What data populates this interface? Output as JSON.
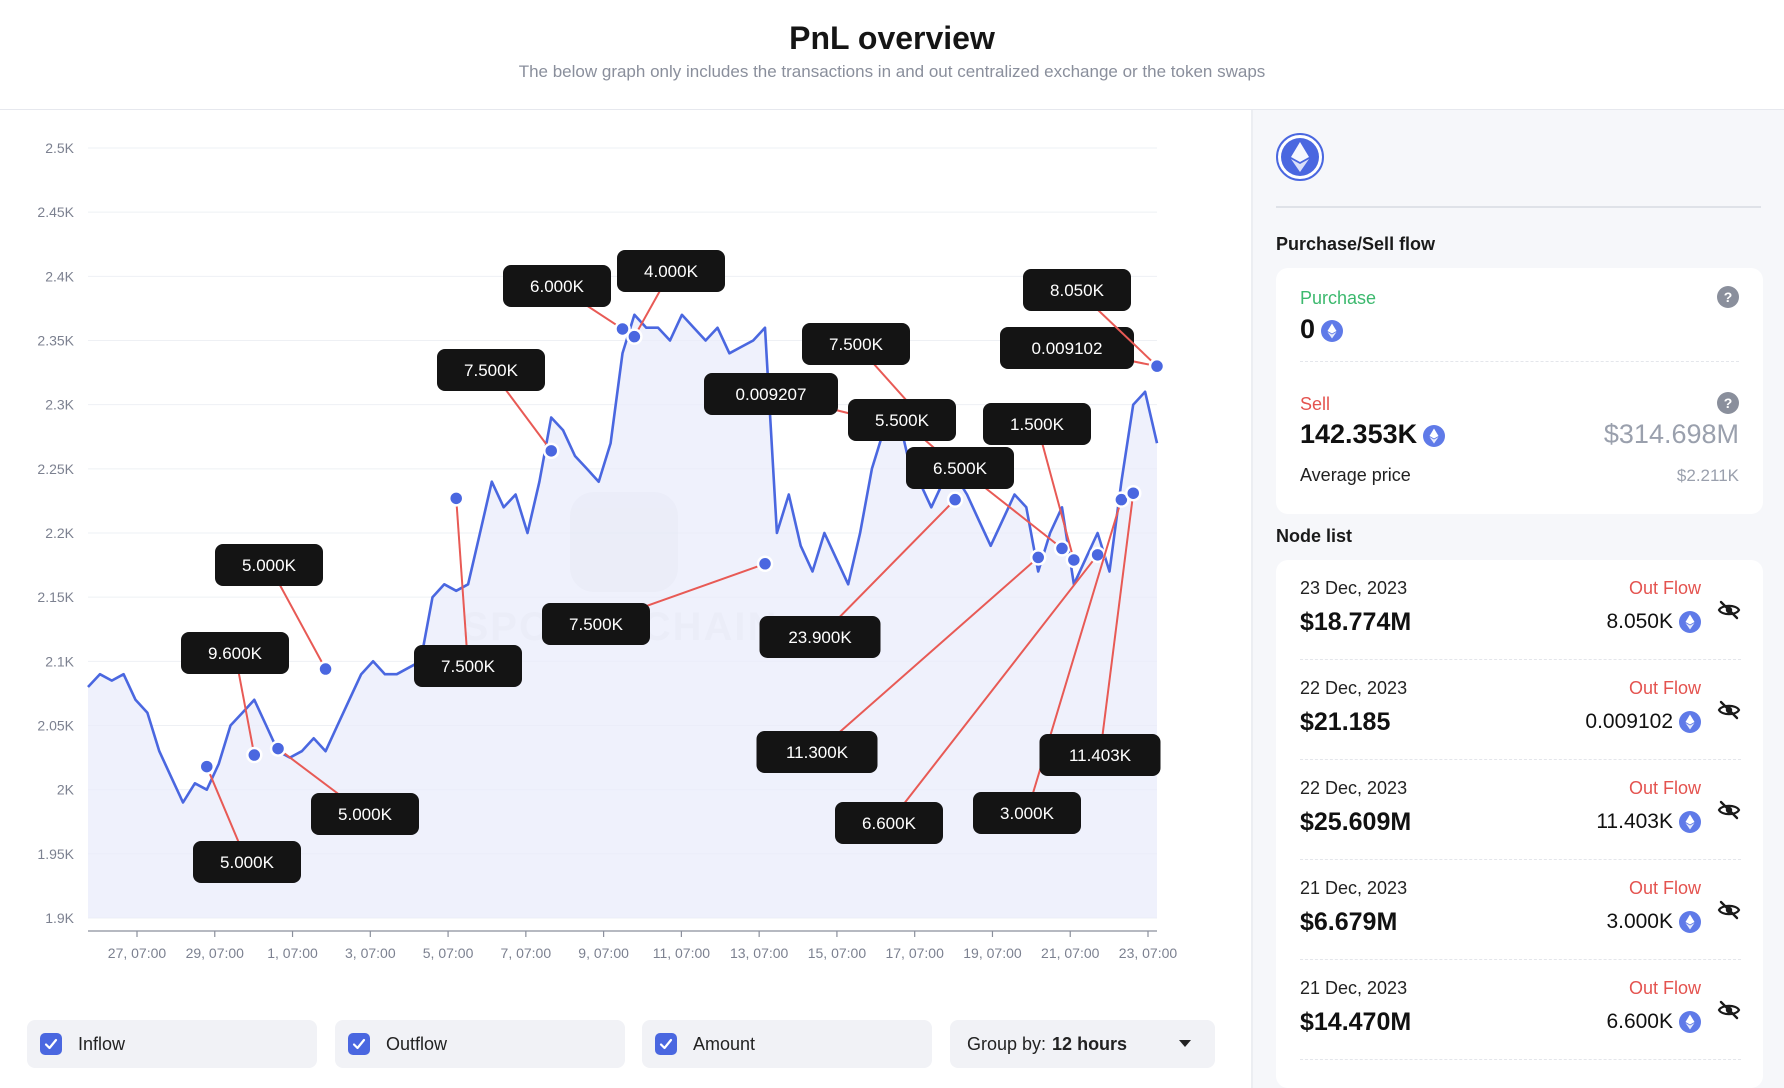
{
  "header": {
    "title": "PnL overview",
    "subtitle": "The below graph only includes the transactions in and out centralized exchange or the token swaps"
  },
  "watermark": "SPOTONCHAIN",
  "colors": {
    "line": "#4a67e0",
    "fill": "#e9ecfb",
    "connector": "#e85a55",
    "label_bg": "#141414",
    "accent": "#4a67e0",
    "out_flow": "#e4534f",
    "purchase": "#3cb96e"
  },
  "chart_data": {
    "type": "line",
    "y_ticks": [
      "1.9K",
      "1.95K",
      "2K",
      "2.05K",
      "2.1K",
      "2.15K",
      "2.2K",
      "2.25K",
      "2.3K",
      "2.35K",
      "2.4K",
      "2.45K",
      "2.5K"
    ],
    "ylim": [
      1.9,
      2.5
    ],
    "x_ticks": [
      "27, 07:00",
      "29, 07:00",
      "1, 07:00",
      "3, 07:00",
      "5, 07:00",
      "7, 07:00",
      "9, 07:00",
      "11, 07:00",
      "13, 07:00",
      "15, 07:00",
      "17, 07:00",
      "19, 07:00",
      "21, 07:00",
      "23, 07:00"
    ],
    "series": [
      {
        "values": [
          2.08,
          2.09,
          2.085,
          2.09,
          2.07,
          2.06,
          2.03,
          2.01,
          1.99,
          2.005,
          2.0,
          2.02,
          2.05,
          2.06,
          2.07,
          2.05,
          2.03,
          2.025,
          2.03,
          2.04,
          2.03,
          2.05,
          2.07,
          2.09,
          2.1,
          2.09,
          2.09,
          2.095,
          2.1,
          2.15,
          2.16,
          2.155,
          2.16,
          2.2,
          2.24,
          2.22,
          2.23,
          2.2,
          2.24,
          2.29,
          2.28,
          2.26,
          2.25,
          2.24,
          2.27,
          2.34,
          2.37,
          2.36,
          2.36,
          2.35,
          2.37,
          2.36,
          2.35,
          2.36,
          2.34,
          2.345,
          2.35,
          2.36,
          2.2,
          2.23,
          2.19,
          2.17,
          2.2,
          2.18,
          2.16,
          2.2,
          2.25,
          2.28,
          2.3,
          2.26,
          2.24,
          2.22,
          2.24,
          2.245,
          2.23,
          2.21,
          2.19,
          2.21,
          2.23,
          2.22,
          2.17,
          2.2,
          2.22,
          2.16,
          2.18,
          2.2,
          2.17,
          2.24,
          2.3,
          2.31,
          2.27
        ]
      }
    ],
    "annotations": [
      {
        "label": "5.000K",
        "x": 10,
        "y": 2.018
      },
      {
        "label": "9.600K",
        "x": 14,
        "y": 2.027
      },
      {
        "label": "5.000K",
        "x": 16,
        "y": 2.032
      },
      {
        "label": "5.000K",
        "x": 20,
        "y": 2.094
      },
      {
        "label": "7.500K",
        "x": 31,
        "y": 2.227
      },
      {
        "label": "7.500K",
        "x": 39,
        "y": 2.264
      },
      {
        "label": "6.000K",
        "x": 45,
        "y": 2.359
      },
      {
        "label": "4.000K",
        "x": 46,
        "y": 2.353
      },
      {
        "label": "7.500K",
        "x": 57,
        "y": 2.176
      },
      {
        "label": "0.009207",
        "x": 69,
        "y": 2.282
      },
      {
        "label": "7.500K",
        "x": 70,
        "y": 2.292
      },
      {
        "label": "23.900K",
        "x": 73,
        "y": 2.226
      },
      {
        "label": "5.500K",
        "x": 74,
        "y": 2.244
      },
      {
        "label": "11.300K",
        "x": 80,
        "y": 2.181
      },
      {
        "label": "6.500K",
        "x": 82,
        "y": 2.188
      },
      {
        "label": "1.500K",
        "x": 83,
        "y": 2.179
      },
      {
        "label": "6.600K",
        "x": 85,
        "y": 2.183
      },
      {
        "label": "3.000K",
        "x": 87,
        "y": 2.226
      },
      {
        "label": "11.403K",
        "x": 88,
        "y": 2.231
      },
      {
        "label": "0.009102",
        "x": 90,
        "y": 2.33
      },
      {
        "label": "8.050K",
        "x": 90,
        "y": 2.33
      }
    ]
  },
  "controls": {
    "inflow_label": "Inflow",
    "outflow_label": "Outflow",
    "amount_label": "Amount",
    "group_prefix": "Group by:",
    "group_value": "12 hours"
  },
  "sidebar": {
    "flow_title": "Purchase/Sell flow",
    "purchase_label": "Purchase",
    "purchase_value": "0",
    "sell_label": "Sell",
    "sell_value": "142.353K",
    "sell_usd": "$314.698M",
    "avg_label": "Average price",
    "avg_value": "$2.211K",
    "help_glyph": "?",
    "node_title": "Node list",
    "nodes": [
      {
        "date": "23 Dec, 2023",
        "flow": "Out Flow",
        "usd": "$18.774M",
        "amount": "8.050K"
      },
      {
        "date": "22 Dec, 2023",
        "flow": "Out Flow",
        "usd": "$21.185",
        "amount": "0.009102"
      },
      {
        "date": "22 Dec, 2023",
        "flow": "Out Flow",
        "usd": "$25.609M",
        "amount": "11.403K"
      },
      {
        "date": "21 Dec, 2023",
        "flow": "Out Flow",
        "usd": "$6.679M",
        "amount": "3.000K"
      },
      {
        "date": "21 Dec, 2023",
        "flow": "Out Flow",
        "usd": "$14.470M",
        "amount": "6.600K"
      }
    ]
  }
}
